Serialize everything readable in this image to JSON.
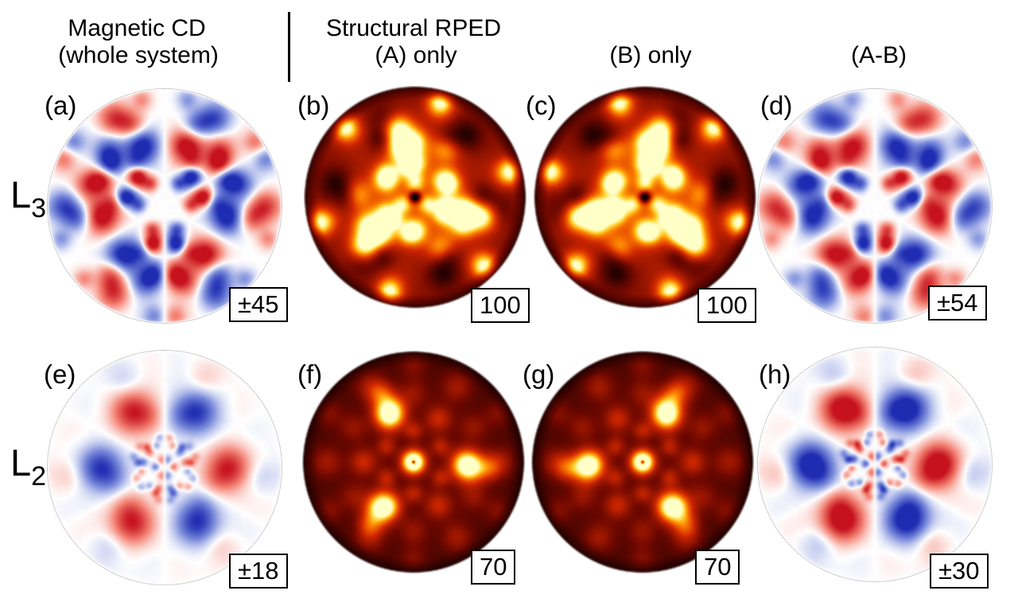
{
  "figure": {
    "title_row": {
      "col1": {
        "line1": "Magnetic CD",
        "line2": "(whole system)"
      },
      "col2": {
        "line1": "Structural RPED",
        "line2": "(A) only"
      },
      "col3": {
        "line2": "(B) only"
      },
      "col4": {
        "line2": "(A-B)"
      }
    },
    "row_labels": [
      {
        "base": "L",
        "sub": "3"
      },
      {
        "base": "L",
        "sub": "2"
      }
    ],
    "panels": [
      {
        "id": "a",
        "label": "(a)",
        "value": "±45",
        "type": "cd",
        "row": "L3",
        "column": "Magnetic CD (whole system)",
        "render": {
          "gain": 1.1,
          "blobs": [
            {
              "t": 70,
              "r": 0.55,
              "s": 0.1,
              "a": 0.95,
              "f": 3,
              "m": "a"
            },
            {
              "t": 0,
              "r": 0.86,
              "s": 0.1,
              "a": 0.8,
              "f": 3,
              "m": "a"
            },
            {
              "t": 40,
              "r": 0.3,
              "s": 0.075,
              "a": -0.85,
              "f": 3,
              "m": "a"
            },
            {
              "t": 88,
              "r": 0.17,
              "s": 0.055,
              "a": 0.75,
              "f": 3,
              "m": "a"
            },
            {
              "t": 22,
              "r": 0.6,
              "s": 0.075,
              "a": -0.7,
              "f": 3,
              "m": "a"
            },
            {
              "t": 112,
              "r": 0.74,
              "s": 0.085,
              "a": 0.65,
              "f": 3,
              "m": "a"
            },
            {
              "t": 55,
              "r": 0.42,
              "s": 0.06,
              "a": 0.6,
              "f": 3,
              "m": "a"
            },
            {
              "t": 148,
              "r": 0.55,
              "s": 0.07,
              "a": -0.55,
              "f": 3,
              "m": "a"
            },
            {
              "t": 90,
              "r": 0.66,
              "s": 0.08,
              "a": -0.6,
              "f": 3,
              "m": "a"
            },
            {
              "t": 35,
              "r": 0.95,
              "s": 0.07,
              "a": 0.45,
              "f": 3,
              "m": "a"
            },
            {
              "t": 78,
              "r": 0.93,
              "s": 0.06,
              "a": -0.4,
              "f": 3,
              "m": "a"
            },
            {
              "t": 10,
              "r": 0.35,
              "s": 0.05,
              "a": 0.5,
              "f": 3,
              "m": "a"
            },
            {
              "t": 60,
              "r": 0.22,
              "s": 0.045,
              "a": -0.55,
              "f": 3,
              "m": "a"
            },
            {
              "t": 130,
              "r": 0.38,
              "s": 0.06,
              "a": 0.5,
              "f": 3,
              "m": "a"
            },
            {
              "t": 165,
              "r": 0.68,
              "s": 0.08,
              "a": 0.45,
              "f": 3,
              "m": "a"
            },
            {
              "t": 45,
              "r": 0.6,
              "s": 0.22,
              "a": 0.18,
              "f": 3,
              "m": "a"
            },
            {
              "t": 135,
              "r": 0.55,
              "s": 0.2,
              "a": -0.15,
              "f": 3,
              "m": "a"
            }
          ]
        }
      },
      {
        "id": "b",
        "label": "(b)",
        "value": "100",
        "type": "hot",
        "row": "L3",
        "column": "Structural RPED (A) only",
        "render": {
          "gain": 1.0,
          "b0": 0.52,
          "b1": -0.22,
          "blobs": [
            {
              "t": 105,
              "r": 0.45,
              "s": 0.09,
              "a": 0.75,
              "f": 3,
              "m": "n"
            },
            {
              "t": 105,
              "r": 0.64,
              "s": 0.095,
              "a": 0.8,
              "f": 3,
              "m": "n"
            },
            {
              "t": 30,
              "r": 0.3,
              "s": 0.08,
              "a": 0.55,
              "f": 6,
              "m": "n"
            },
            {
              "t": 90,
              "r": 0.13,
              "s": 0.06,
              "a": 0.45,
              "f": 3,
              "m": "n"
            },
            {
              "t": 0,
              "r": 0.0,
              "s": 0.035,
              "a": -0.75,
              "f": 1,
              "m": "n"
            },
            {
              "t": 75,
              "r": 0.9,
              "s": 0.075,
              "a": 0.5,
              "f": 6,
              "m": "n"
            },
            {
              "t": 15,
              "r": 0.84,
              "s": 0.09,
              "a": 0.3,
              "f": 6,
              "m": "n"
            },
            {
              "t": 50,
              "r": 0.72,
              "s": 0.1,
              "a": -0.3,
              "f": 6,
              "m": "n"
            },
            {
              "t": 178,
              "r": 0.52,
              "s": 0.09,
              "a": 0.45,
              "f": 3,
              "m": "n"
            },
            {
              "t": 90,
              "r": 0.5,
              "s": 0.085,
              "a": 0.5,
              "f": 3,
              "m": "n"
            },
            {
              "t": 140,
              "r": 0.33,
              "s": 0.07,
              "a": 0.4,
              "f": 3,
              "m": "n"
            },
            {
              "t": 345,
              "r": 0.28,
              "s": 0.06,
              "a": 0.4,
              "f": 3,
              "m": "n"
            },
            {
              "t": 60,
              "r": 0.6,
              "s": 0.08,
              "a": -0.25,
              "f": 6,
              "m": "n"
            }
          ]
        }
      },
      {
        "id": "c",
        "label": "(c)",
        "value": "100",
        "type": "hot",
        "row": "L3",
        "column": "Structural RPED (B) only",
        "render": {
          "like": "b",
          "flip": true,
          "gain": 1.0
        }
      },
      {
        "id": "d",
        "label": "(d)",
        "value": "±54",
        "type": "cd",
        "row": "L3",
        "column": "Structural RPED (A-B)",
        "render": {
          "like": "a",
          "invert": true,
          "gain": 1.05
        }
      },
      {
        "id": "e",
        "label": "(e)",
        "value": "±18",
        "type": "cd",
        "row": "L2",
        "column": "Magnetic CD (whole system)",
        "render": {
          "gain": 1.0,
          "blobs": [
            {
              "t": 0,
              "r": 0.55,
              "s": 0.13,
              "a": 0.95,
              "f": 3,
              "m": "a"
            },
            {
              "t": 100,
              "r": 0.07,
              "s": 0.028,
              "a": 0.85,
              "f": 1,
              "m": "a"
            },
            {
              "t": 260,
              "r": 0.07,
              "s": 0.028,
              "a": 0.85,
              "f": 1,
              "m": "a"
            },
            {
              "t": 175,
              "r": 0.08,
              "s": 0.024,
              "a": -0.5,
              "f": 1,
              "m": "a"
            },
            {
              "t": 15,
              "r": 0.18,
              "s": 0.025,
              "a": 0.4,
              "f": 3,
              "m": "a"
            },
            {
              "t": 48,
              "r": 0.22,
              "s": 0.024,
              "a": -0.38,
              "f": 3,
              "m": "a"
            },
            {
              "t": 80,
              "r": 0.26,
              "s": 0.026,
              "a": 0.35,
              "f": 3,
              "m": "a"
            },
            {
              "t": 110,
              "r": 0.2,
              "s": 0.022,
              "a": -0.35,
              "f": 3,
              "m": "a"
            },
            {
              "t": 140,
              "r": 0.28,
              "s": 0.026,
              "a": 0.32,
              "f": 3,
              "m": "a"
            },
            {
              "t": 170,
              "r": 0.24,
              "s": 0.024,
              "a": -0.3,
              "f": 3,
              "m": "a"
            },
            {
              "t": 28,
              "r": 0.78,
              "s": 0.14,
              "a": -0.2,
              "f": 3,
              "m": "a"
            },
            {
              "t": 92,
              "r": 0.85,
              "s": 0.12,
              "a": 0.16,
              "f": 3,
              "m": "a"
            },
            {
              "t": 150,
              "r": 0.72,
              "s": 0.12,
              "a": -0.15,
              "f": 3,
              "m": "a"
            },
            {
              "t": 62,
              "r": 0.95,
              "s": 0.09,
              "a": 0.16,
              "f": 3,
              "m": "a"
            },
            {
              "t": 118,
              "r": 0.93,
              "s": 0.09,
              "a": 0.14,
              "f": 3,
              "m": "a"
            },
            {
              "t": 105,
              "r": 0.45,
              "s": 0.09,
              "a": 0.2,
              "f": 3,
              "m": "a"
            },
            {
              "t": 185,
              "r": 0.82,
              "s": 0.1,
              "a": 0.22,
              "f": 3,
              "m": "a"
            }
          ]
        }
      },
      {
        "id": "f",
        "label": "(f)",
        "value": "70",
        "type": "hot",
        "row": "L2",
        "column": "Structural RPED (A) only",
        "render": {
          "gain": 1.0,
          "b0": 0.22,
          "b1": -0.08,
          "blobs": [
            {
              "t": 0,
              "r": 0.0,
              "s": 0.07,
              "a": 1.2,
              "f": 1,
              "m": "n"
            },
            {
              "t": 0,
              "r": 0.0,
              "s": 0.015,
              "a": -1.0,
              "f": 1,
              "m": "n"
            },
            {
              "t": 115,
              "r": 0.5,
              "s": 0.095,
              "a": 0.85,
              "f": 3,
              "m": "n"
            },
            {
              "t": 115,
              "r": 0.68,
              "s": 0.08,
              "a": 0.3,
              "f": 3,
              "m": "n"
            },
            {
              "t": 60,
              "r": 0.45,
              "s": 0.085,
              "a": 0.3,
              "f": 6,
              "m": "n"
            },
            {
              "t": 0,
              "r": 0.78,
              "s": 0.1,
              "a": 0.22,
              "f": 6,
              "m": "n"
            },
            {
              "t": 90,
              "r": 0.28,
              "s": 0.06,
              "a": 0.25,
              "f": 6,
              "m": "n"
            },
            {
              "t": 30,
              "r": 0.62,
              "s": 0.09,
              "a": 0.18,
              "f": 6,
              "m": "n"
            },
            {
              "t": 150,
              "r": 0.88,
              "s": 0.09,
              "a": 0.15,
              "f": 6,
              "m": "n"
            }
          ]
        }
      },
      {
        "id": "g",
        "label": "(g)",
        "value": "70",
        "type": "hot",
        "row": "L2",
        "column": "Structural RPED (B) only",
        "render": {
          "like": "f",
          "flip": true,
          "gain": 1.0
        }
      },
      {
        "id": "h",
        "label": "(h)",
        "value": "±30",
        "type": "cd",
        "row": "L2",
        "column": "Structural RPED (A-B)",
        "render": {
          "like": "e",
          "gain": 1.3
        }
      }
    ]
  },
  "chart_data": {
    "type": "heatmap",
    "description": "Circular photoelectron diffraction pattern panels: magnetic circular dichroism (red/blue diverging maps) and structural RPED intensity (hot colormap discs), for L3 and L2 absorption edges.",
    "rows": [
      "L3",
      "L2"
    ],
    "columns": [
      "Magnetic CD (whole system)",
      "Structural RPED (A) only",
      "Structural RPED (B) only",
      "Structural RPED (A-B)"
    ],
    "colors": {
      "cd_red": "#c6121c",
      "cd_blue": "#1c2cb2",
      "hot_low": "#0f0000",
      "hot_mid": "#d22800",
      "hot_high": "#ffffc8"
    },
    "panels": [
      {
        "id": "(a)",
        "row": "L3",
        "column": "Magnetic CD (whole system)",
        "colormap": "diverging red-white-blue",
        "scale_value": "±45"
      },
      {
        "id": "(b)",
        "row": "L3",
        "column": "Structural RPED (A) only",
        "colormap": "hot",
        "scale_value": "100"
      },
      {
        "id": "(c)",
        "row": "L3",
        "column": "Structural RPED (B) only",
        "colormap": "hot",
        "scale_value": "100"
      },
      {
        "id": "(d)",
        "row": "L3",
        "column": "Structural RPED (A-B)",
        "colormap": "diverging red-white-blue",
        "scale_value": "±54"
      },
      {
        "id": "(e)",
        "row": "L2",
        "column": "Magnetic CD (whole system)",
        "colormap": "diverging red-white-blue",
        "scale_value": "±18"
      },
      {
        "id": "(f)",
        "row": "L2",
        "column": "Structural RPED (A) only",
        "colormap": "hot",
        "scale_value": "70"
      },
      {
        "id": "(g)",
        "row": "L2",
        "column": "Structural RPED (B) only",
        "colormap": "hot",
        "scale_value": "70"
      },
      {
        "id": "(h)",
        "row": "L2",
        "column": "Structural RPED (A-B)",
        "colormap": "diverging red-white-blue",
        "scale_value": "±30"
      }
    ]
  }
}
